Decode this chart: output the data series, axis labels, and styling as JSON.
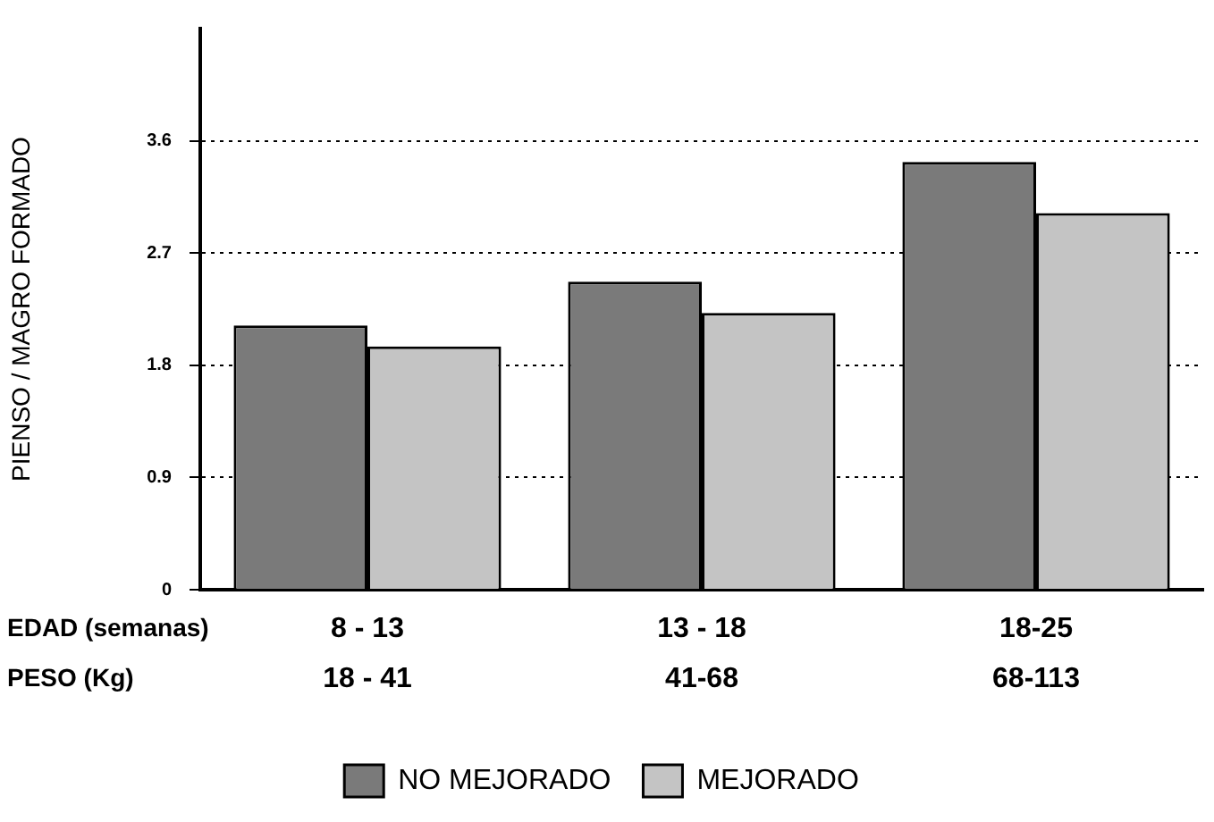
{
  "chart_data": {
    "type": "bar",
    "ylabel": "PIENSO / MAGRO FORMADO",
    "xlabel": "EDAD (semanas)\nPESO (Kg)",
    "categories": [
      "8 - 13\n18 - 41",
      "13 - 18\n41-68",
      "18-25\n68-113"
    ],
    "series": [
      {
        "name": "NO MEJORADO",
        "color": "#7a7a7a",
        "values": [
          2.12,
          2.47,
          3.43
        ]
      },
      {
        "name": "MEJORADO",
        "color": "#c4c4c4",
        "values": [
          1.95,
          2.22,
          3.02
        ]
      }
    ],
    "ylim": [
      0,
      4.5
    ],
    "yticks": [
      0,
      0.9,
      1.8,
      2.7,
      3.6
    ],
    "grid": "y",
    "line_style": "dotted",
    "legend": "bottom"
  }
}
